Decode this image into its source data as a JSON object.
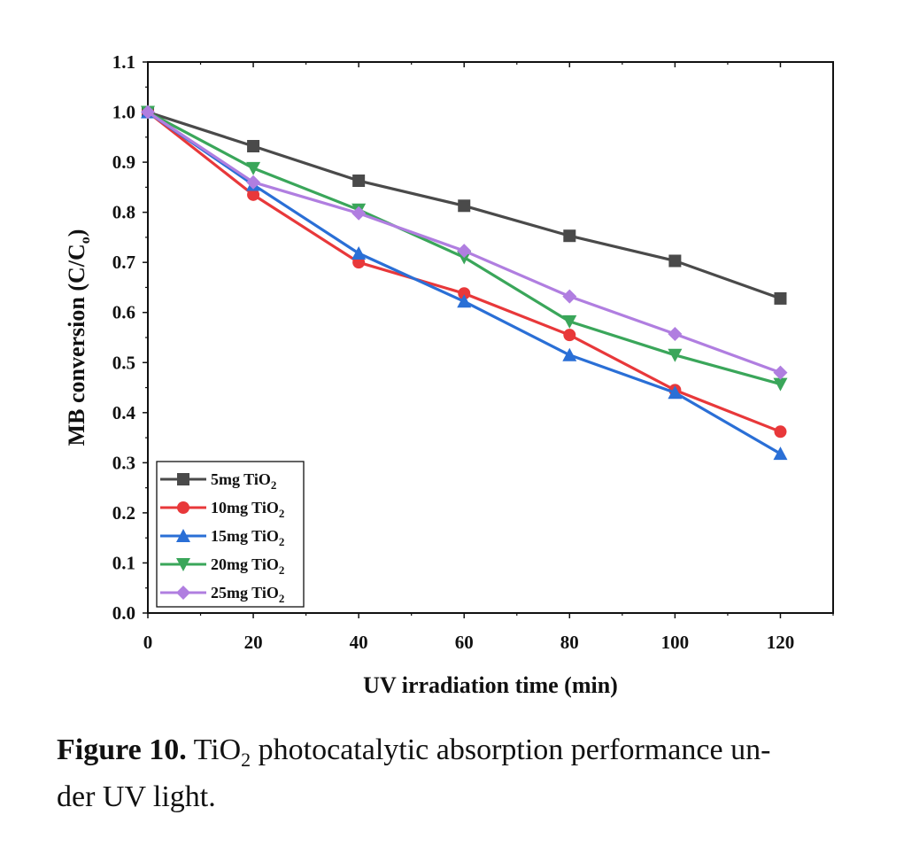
{
  "chart_data": {
    "type": "line",
    "x": [
      0,
      20,
      40,
      60,
      80,
      100,
      120
    ],
    "xlabel": "UV irradiation time (min)",
    "ylabel_main": "MB conversion (C/C",
    "ylabel_sub": "o",
    "ylabel_end": ")",
    "xlim": [
      0,
      130
    ],
    "ylim": [
      0.0,
      1.1
    ],
    "xticks": [
      0,
      20,
      40,
      60,
      80,
      100,
      120
    ],
    "xtick_labels": [
      "0",
      "20",
      "40",
      "60",
      "80",
      "100",
      "120"
    ],
    "yticks": [
      0.0,
      0.1,
      0.2,
      0.3,
      0.4,
      0.5,
      0.6,
      0.7,
      0.8,
      0.9,
      1.0,
      1.1
    ],
    "ytick_labels": [
      "0.0",
      "0.1",
      "0.2",
      "0.3",
      "0.4",
      "0.5",
      "0.6",
      "0.7",
      "0.8",
      "0.9",
      "1.0",
      "1.1"
    ],
    "legend_position": "bottom-left",
    "grid": false,
    "series": [
      {
        "name": "5mg TiO",
        "sub": "2",
        "color": "#4a4a4a",
        "marker": "square",
        "values": [
          1.0,
          0.932,
          0.863,
          0.813,
          0.753,
          0.703,
          0.628
        ]
      },
      {
        "name": "10mg TiO",
        "sub": "2",
        "color": "#e8383a",
        "marker": "circle",
        "values": [
          1.0,
          0.835,
          0.7,
          0.638,
          0.555,
          0.445,
          0.362
        ]
      },
      {
        "name": "15mg TiO",
        "sub": "2",
        "color": "#2a6fd6",
        "marker": "triangle-up",
        "values": [
          1.0,
          0.855,
          0.718,
          0.622,
          0.515,
          0.44,
          0.318
        ]
      },
      {
        "name": "20mg TiO",
        "sub": "2",
        "color": "#3aa65a",
        "marker": "triangle-down",
        "values": [
          1.0,
          0.888,
          0.805,
          0.71,
          0.582,
          0.515,
          0.457
        ]
      },
      {
        "name": "25mg TiO",
        "sub": "2",
        "color": "#b07ee0",
        "marker": "diamond",
        "values": [
          1.0,
          0.86,
          0.798,
          0.723,
          0.632,
          0.557,
          0.48
        ]
      }
    ]
  },
  "caption": {
    "label": "Figure 10.",
    "text_pre": "TiO",
    "text_sub": "2",
    "text_post": "photocatalytic absorption performance un-",
    "line2": "der UV light."
  }
}
